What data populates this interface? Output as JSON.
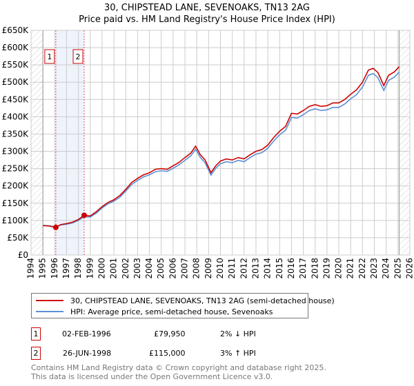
{
  "title": {
    "line1": "30, CHIPSTEAD LANE, SEVENOAKS, TN13 2AG",
    "line2": "Price paid vs. HM Land Registry's House Price Index (HPI)"
  },
  "chart_data": {
    "type": "line",
    "xlim": [
      1994,
      2026
    ],
    "ylim": [
      0,
      650000
    ],
    "x_ticks": [
      "1994",
      "1995",
      "1996",
      "1997",
      "1998",
      "1999",
      "2000",
      "2001",
      "2002",
      "2003",
      "2004",
      "2005",
      "2006",
      "2007",
      "2008",
      "2009",
      "2010",
      "2011",
      "2012",
      "2013",
      "2014",
      "2015",
      "2016",
      "2017",
      "2018",
      "2019",
      "2020",
      "2021",
      "2022",
      "2023",
      "2024",
      "2025",
      "2026"
    ],
    "y_ticks": [
      "£0",
      "£50K",
      "£100K",
      "£150K",
      "£200K",
      "£250K",
      "£300K",
      "£350K",
      "£400K",
      "£450K",
      "£500K",
      "£550K",
      "£600K",
      "£650K"
    ],
    "series": [
      {
        "name": "30, CHIPSTEAD LANE, SEVENOAKS, TN13 2AG (semi-detached house)",
        "color": "#cc0000",
        "x": [
          1995,
          1995.5,
          1996.09,
          1996.5,
          1997,
          1997.5,
          1998,
          1998.49,
          1999,
          1999.5,
          2000,
          2000.5,
          2001,
          2001.5,
          2002,
          2002.5,
          2003,
          2003.5,
          2004,
          2004.5,
          2005,
          2005.5,
          2006,
          2006.5,
          2007,
          2007.5,
          2007.9,
          2008.3,
          2008.7,
          2009.2,
          2009.6,
          2010,
          2010.5,
          2011,
          2011.5,
          2012,
          2012.5,
          2013,
          2013.5,
          2014,
          2014.5,
          2015,
          2015.5,
          2016,
          2016.5,
          2017,
          2017.5,
          2018,
          2018.5,
          2019,
          2019.5,
          2020,
          2020.5,
          2021,
          2021.5,
          2022,
          2022.5,
          2022.9,
          2023.3,
          2023.8,
          2024.2,
          2024.7,
          2025.1
        ],
        "y": [
          85000,
          84000,
          79950,
          88000,
          91000,
          95000,
          103000,
          115000,
          113000,
          125000,
          140000,
          152000,
          160000,
          172000,
          190000,
          210000,
          222000,
          232000,
          238000,
          248000,
          250000,
          248000,
          258000,
          268000,
          282000,
          295000,
          315000,
          290000,
          275000,
          238000,
          258000,
          272000,
          278000,
          275000,
          282000,
          278000,
          290000,
          300000,
          305000,
          318000,
          340000,
          358000,
          372000,
          410000,
          408000,
          418000,
          430000,
          435000,
          430000,
          432000,
          440000,
          440000,
          450000,
          465000,
          478000,
          500000,
          535000,
          540000,
          528000,
          490000,
          520000,
          530000,
          545000
        ]
      },
      {
        "name": "HPI: Average price, semi-detached house, Sevenoaks",
        "color": "#5b8fd6",
        "x": [
          1995,
          1995.5,
          1996.09,
          1996.5,
          1997,
          1997.5,
          1998,
          1998.49,
          1999,
          1999.5,
          2000,
          2000.5,
          2001,
          2001.5,
          2002,
          2002.5,
          2003,
          2003.5,
          2004,
          2004.5,
          2005,
          2005.5,
          2006,
          2006.5,
          2007,
          2007.5,
          2007.9,
          2008.3,
          2008.7,
          2009.2,
          2009.6,
          2010,
          2010.5,
          2011,
          2011.5,
          2012,
          2012.5,
          2013,
          2013.5,
          2014,
          2014.5,
          2015,
          2015.5,
          2016,
          2016.5,
          2017,
          2017.5,
          2018,
          2018.5,
          2019,
          2019.5,
          2020,
          2020.5,
          2021,
          2021.5,
          2022,
          2022.5,
          2022.9,
          2023.3,
          2023.8,
          2024.2,
          2024.7,
          2025.1
        ],
        "y": [
          86000,
          85000,
          81500,
          87000,
          89000,
          93000,
          100000,
          111000,
          110000,
          121000,
          136000,
          148000,
          156000,
          167000,
          185000,
          204000,
          216000,
          226000,
          232000,
          241000,
          244000,
          242000,
          251000,
          261000,
          274000,
          287000,
          306000,
          282000,
          267000,
          231000,
          251000,
          264000,
          270000,
          267000,
          274000,
          270000,
          282000,
          292000,
          296000,
          309000,
          330000,
          348000,
          361000,
          398000,
          396000,
          406000,
          418000,
          423000,
          418000,
          420000,
          427000,
          427000,
          437000,
          452000,
          464000,
          486000,
          520000,
          525000,
          513000,
          476000,
          505000,
          515000,
          529000
        ]
      }
    ],
    "sales": [
      {
        "label": "1",
        "x": 1996.09,
        "y": 79950
      },
      {
        "label": "2",
        "x": 1998.49,
        "y": 115000
      }
    ],
    "grid": true
  },
  "legend": {
    "items": [
      {
        "label": "30, CHIPSTEAD LANE, SEVENOAKS, TN13 2AG (semi-detached house)",
        "color": "#cc0000"
      },
      {
        "label": "HPI: Average price, semi-detached house, Sevenoaks",
        "color": "#5b8fd6"
      }
    ]
  },
  "table": [
    {
      "num": "1",
      "date": "02-FEB-1996",
      "price": "£79,950",
      "hpi": "2% ↓ HPI"
    },
    {
      "num": "2",
      "date": "26-JUN-1998",
      "price": "£115,000",
      "hpi": "3% ↑ HPI"
    }
  ],
  "footer": {
    "line1": "Contains HM Land Registry data © Crown copyright and database right 2025.",
    "line2": "This data is licensed under the Open Government Licence v3.0."
  }
}
